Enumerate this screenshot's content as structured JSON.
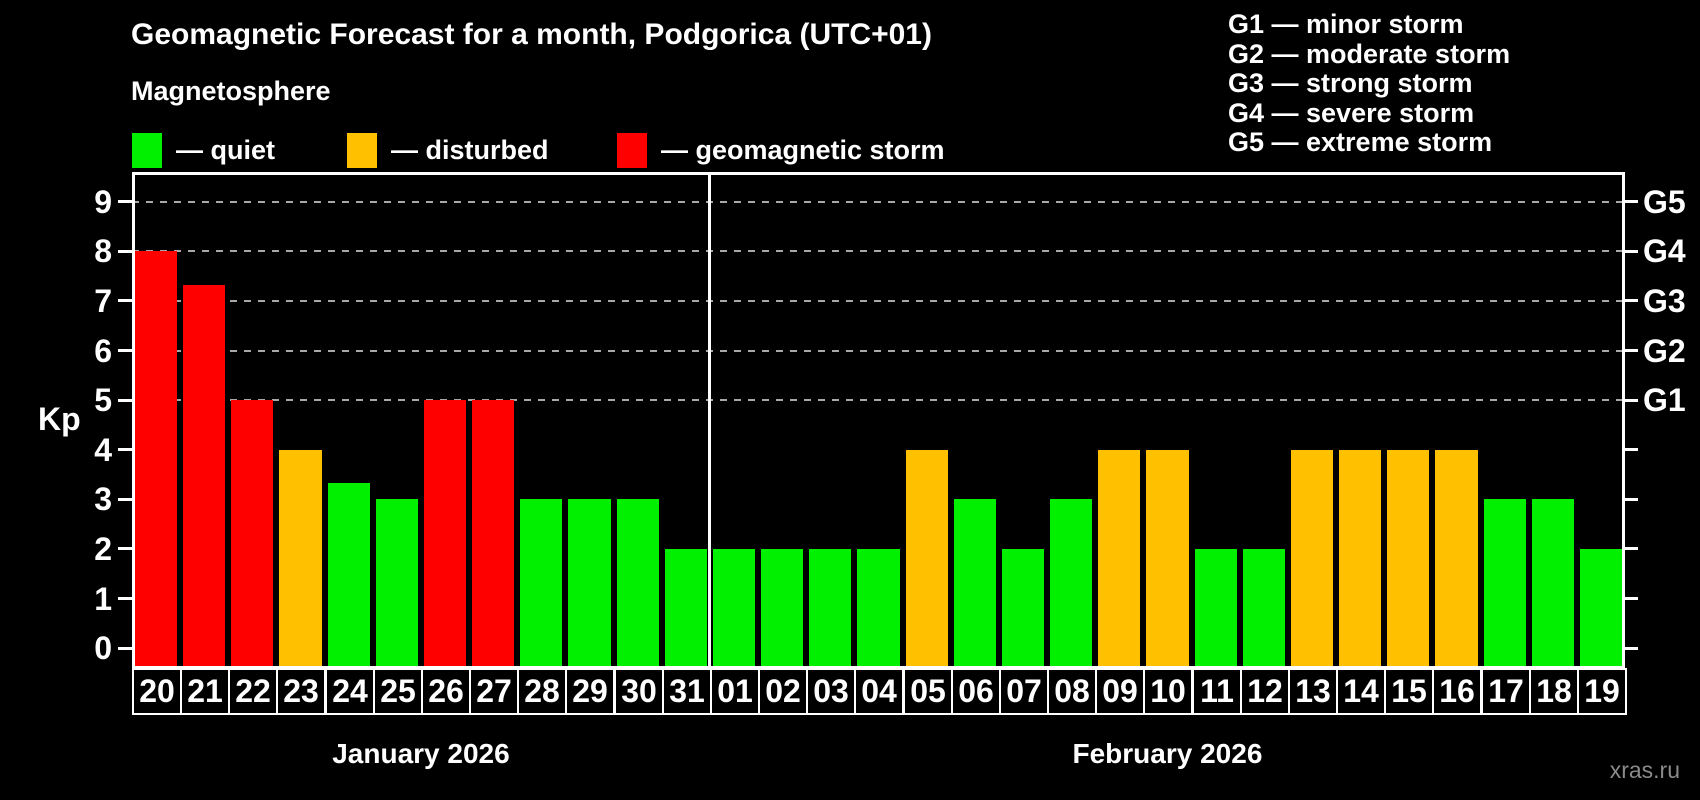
{
  "title": "Geomagnetic Forecast for a month, Podgorica (UTC+01)",
  "subtitle": "Magnetosphere",
  "legend": {
    "items": [
      {
        "key": "quiet",
        "label": "— quiet",
        "color": "#00f000"
      },
      {
        "key": "disturbed",
        "label": "— disturbed",
        "color": "#ffc000"
      },
      {
        "key": "storm",
        "label": "— geomagnetic storm",
        "color": "#ff0000"
      }
    ]
  },
  "g_legend": [
    "G1 — minor storm",
    "G2 — moderate storm",
    "G3 — strong storm",
    "G4 — severe storm",
    "G5 — extreme storm"
  ],
  "watermark": "xras.ru",
  "chart_data": {
    "type": "bar",
    "ylabel": "Kp",
    "ylim": [
      -0.4,
      9.6
    ],
    "yticks": [
      0,
      1,
      2,
      3,
      4,
      5,
      6,
      7,
      8,
      9
    ],
    "gridline_kp": [
      5,
      6,
      7,
      8,
      9
    ],
    "right_axis_labels": [
      {
        "kp": 5,
        "label": "G1"
      },
      {
        "kp": 6,
        "label": "G2"
      },
      {
        "kp": 7,
        "label": "G3"
      },
      {
        "kp": 8,
        "label": "G4"
      },
      {
        "kp": 9,
        "label": "G5"
      }
    ],
    "status_colors": {
      "quiet": "#00f000",
      "disturbed": "#ffc000",
      "storm": "#ff0000"
    },
    "months": [
      {
        "label": "January 2026",
        "days": [
          {
            "d": "20",
            "kp": 8,
            "status": "storm"
          },
          {
            "d": "21",
            "kp": 7.33,
            "status": "storm"
          },
          {
            "d": "22",
            "kp": 5,
            "status": "storm"
          },
          {
            "d": "23",
            "kp": 4,
            "status": "disturbed"
          },
          {
            "d": "24",
            "kp": 3.33,
            "status": "quiet"
          },
          {
            "d": "25",
            "kp": 3,
            "status": "quiet"
          },
          {
            "d": "26",
            "kp": 5,
            "status": "storm"
          },
          {
            "d": "27",
            "kp": 5,
            "status": "storm"
          },
          {
            "d": "28",
            "kp": 3,
            "status": "quiet"
          },
          {
            "d": "29",
            "kp": 3,
            "status": "quiet"
          },
          {
            "d": "30",
            "kp": 3,
            "status": "quiet"
          },
          {
            "d": "31",
            "kp": 2,
            "status": "quiet"
          }
        ]
      },
      {
        "label": "February 2026",
        "days": [
          {
            "d": "01",
            "kp": 2,
            "status": "quiet"
          },
          {
            "d": "02",
            "kp": 2,
            "status": "quiet"
          },
          {
            "d": "03",
            "kp": 2,
            "status": "quiet"
          },
          {
            "d": "04",
            "kp": 2,
            "status": "quiet"
          },
          {
            "d": "05",
            "kp": 4,
            "status": "disturbed"
          },
          {
            "d": "06",
            "kp": 3,
            "status": "quiet"
          },
          {
            "d": "07",
            "kp": 2,
            "status": "quiet"
          },
          {
            "d": "08",
            "kp": 3,
            "status": "quiet"
          },
          {
            "d": "09",
            "kp": 4,
            "status": "disturbed"
          },
          {
            "d": "10",
            "kp": 4,
            "status": "disturbed"
          },
          {
            "d": "11",
            "kp": 2,
            "status": "quiet"
          },
          {
            "d": "12",
            "kp": 2,
            "status": "quiet"
          },
          {
            "d": "13",
            "kp": 4,
            "status": "disturbed"
          },
          {
            "d": "14",
            "kp": 4,
            "status": "disturbed"
          },
          {
            "d": "15",
            "kp": 4,
            "status": "disturbed"
          },
          {
            "d": "16",
            "kp": 4,
            "status": "disturbed"
          },
          {
            "d": "17",
            "kp": 3,
            "status": "quiet"
          },
          {
            "d": "18",
            "kp": 3,
            "status": "quiet"
          },
          {
            "d": "19",
            "kp": 2,
            "status": "quiet"
          }
        ]
      }
    ]
  }
}
